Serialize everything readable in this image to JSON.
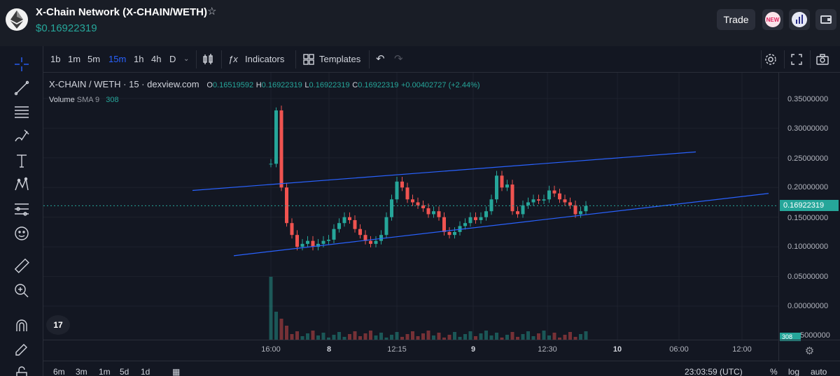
{
  "header": {
    "pair_title": "X-Chain Network (X-CHAIN/WETH)",
    "price": "$0.16922319",
    "trade_label": "Trade",
    "badge_text": "NEW"
  },
  "toolbar": {
    "intervals": [
      "1b",
      "1m",
      "5m",
      "15m",
      "1h",
      "4h",
      "D"
    ],
    "active_interval": "15m",
    "indicators_label": "Indicators",
    "templates_label": "Templates"
  },
  "legend": {
    "symbol": "X-CHAIN / WETH · 15 · dexview.com",
    "open_label": "O",
    "open": "0.16519592",
    "high_label": "H",
    "high": "0.16922319",
    "low_label": "L",
    "low": "0.16922319",
    "close_label": "C",
    "close": "0.16922319",
    "change": "+0.00402727 (+2.44%)",
    "volume_label": "Volume",
    "volume_sma": "SMA 9",
    "volume_value": "308"
  },
  "logo_text": "17",
  "price_axis": {
    "ticks": [
      "0.35000000",
      "0.30000000",
      "0.25000000",
      "0.20000000",
      "0.15000000",
      "0.10000000",
      "0.05000000",
      "0.00000000"
    ],
    "current_price": "0.16922319",
    "volume_tag": "308",
    "partial_tick": "5000000"
  },
  "time_axis": {
    "labels": [
      "16:00",
      "8",
      "12:15",
      "9",
      "12:30",
      "10",
      "06:00",
      "12:00"
    ],
    "bold_labels": [
      "8",
      "9",
      "10"
    ]
  },
  "bottom_bar": {
    "ranges": [
      "6m",
      "3m",
      "1m",
      "5d",
      "1d"
    ],
    "clock": "23:03:59 (UTC)",
    "percent_label": "%",
    "log_label": "log",
    "auto_label": "auto"
  },
  "colors": {
    "up": "#26a69a",
    "down": "#ef5350",
    "trendline": "#2962ff",
    "background": "#131722"
  },
  "chart_data": {
    "type": "candlestick",
    "title": "",
    "ylim": [
      0.0,
      0.35
    ],
    "close_series": [
      0.24,
      0.33,
      0.2,
      0.14,
      0.12,
      0.1,
      0.105,
      0.11,
      0.1,
      0.105,
      0.11,
      0.112,
      0.13,
      0.14,
      0.15,
      0.145,
      0.13,
      0.12,
      0.11,
      0.105,
      0.11,
      0.12,
      0.15,
      0.18,
      0.21,
      0.2,
      0.18,
      0.175,
      0.17,
      0.165,
      0.155,
      0.16,
      0.15,
      0.125,
      0.12,
      0.125,
      0.135,
      0.14,
      0.15,
      0.145,
      0.15,
      0.16,
      0.18,
      0.22,
      0.2,
      0.205,
      0.16,
      0.155,
      0.17,
      0.175,
      0.18,
      0.178,
      0.18,
      0.195,
      0.19,
      0.18,
      0.175,
      0.17,
      0.155,
      0.16,
      0.169
    ],
    "trendlines": [
      {
        "x1": "t0",
        "y1": 0.195,
        "x2": "t1",
        "y2": 0.26
      },
      {
        "x1": "t0",
        "y1": 0.085,
        "x2": "t1",
        "y2": 0.19
      }
    ],
    "current_price": 0.16922319
  }
}
